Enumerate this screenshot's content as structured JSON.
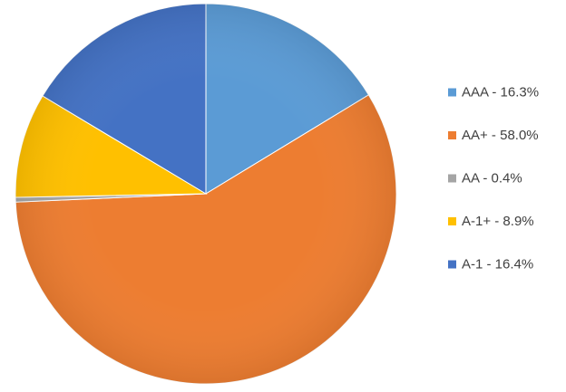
{
  "chart_data": {
    "type": "pie",
    "slices": [
      {
        "label": "AAA - 16.3%",
        "value": 16.3,
        "color": "#5B9BD5"
      },
      {
        "label": "AA+ - 58.0%",
        "value": 58.0,
        "color": "#ED7D31"
      },
      {
        "label": "AA - 0.4%",
        "value": 0.4,
        "color": "#A5A5A5"
      },
      {
        "label": "A-1+ - 8.9%",
        "value": 8.9,
        "color": "#FFC000"
      },
      {
        "label": "A-1 - 16.4%",
        "value": 16.4,
        "color": "#4472C4"
      }
    ],
    "legend_position": "right",
    "start_angle_deg": 0,
    "direction": "clockwise"
  }
}
